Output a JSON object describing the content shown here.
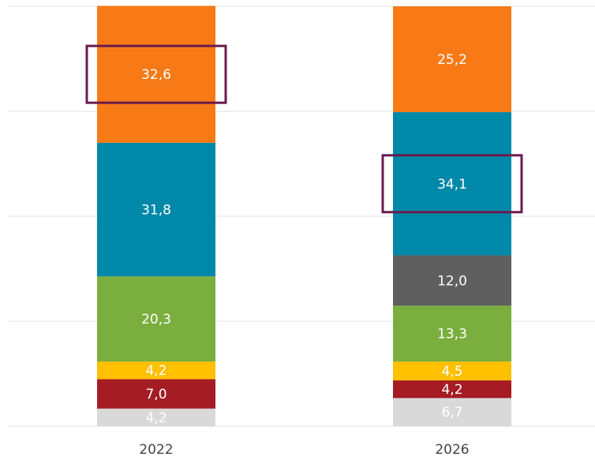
{
  "chart_data": {
    "type": "stacked_bar",
    "categories": [
      "2022",
      "2026"
    ],
    "ylim": [
      0,
      100
    ],
    "yticks": [
      0,
      25,
      50,
      75,
      100
    ],
    "grid": true,
    "series": [
      {
        "color": "#d9d9d9",
        "values": [
          4.2,
          6.7
        ],
        "value_labels": [
          "4,2",
          "6,7"
        ]
      },
      {
        "color": "#a51c24",
        "values": [
          7.0,
          4.2
        ],
        "value_labels": [
          "7,0",
          "4,2"
        ]
      },
      {
        "color": "#ffc000",
        "values": [
          4.2,
          4.5
        ],
        "value_labels": [
          "4,2",
          "4,5"
        ]
      },
      {
        "color": "#7aae3f",
        "values": [
          20.3,
          13.3
        ],
        "value_labels": [
          "20,3",
          "13,3"
        ]
      },
      {
        "color": "#5f5f5f",
        "values": [
          null,
          12.0
        ],
        "value_labels": [
          null,
          "12,0"
        ]
      },
      {
        "color": "#0088a8",
        "values": [
          31.8,
          34.1
        ],
        "value_labels": [
          "31,8",
          "34,1"
        ]
      },
      {
        "color": "#f77a17",
        "values": [
          32.6,
          25.2
        ],
        "value_labels": [
          "32,6",
          "25,2"
        ]
      }
    ],
    "highlight": [
      {
        "series": 6,
        "category": 0
      },
      {
        "series": 5,
        "category": 1
      }
    ],
    "highlight_color": "#6a1b4d"
  }
}
